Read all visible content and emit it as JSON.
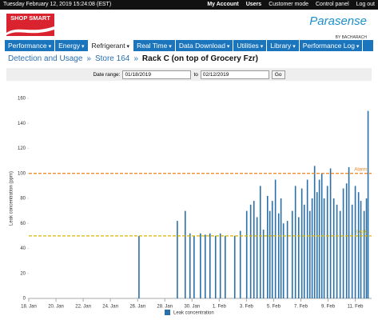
{
  "top_bar": {
    "datetime": "Tuesday February 12, 2019 15:24:08 (EST)",
    "links": [
      "My Account",
      "Users",
      "Customer mode",
      "Control panel",
      "Log out"
    ]
  },
  "header": {
    "logo": "SHOP SMART",
    "brand": "Parasense",
    "brand_sub": "BY BACHARACH"
  },
  "nav": {
    "items": [
      "Performance",
      "Energy",
      "Refrigerant",
      "Real Time",
      "Data Download",
      "Utilities",
      "Library",
      "Performance Log"
    ],
    "active_index": 2
  },
  "breadcrumb": {
    "items": [
      "Detection and Usage",
      "Store 164",
      "Rack C (on top of Grocery Fzr)"
    ],
    "separator": "»"
  },
  "date_range": {
    "label": "Date range:",
    "from": "01/18/2019",
    "to_label": "to",
    "to": "02/12/2019",
    "button": "Go"
  },
  "chart_data": {
    "type": "bar",
    "y_label": "Leak concentration (ppm)",
    "xlim": [
      0,
      25.2
    ],
    "xticks": [
      {
        "value": 0,
        "label": "18. Jan"
      },
      {
        "value": 2,
        "label": "20. Jan"
      },
      {
        "value": 4,
        "label": "22. Jan"
      },
      {
        "value": 6,
        "label": "24. Jan"
      },
      {
        "value": 8,
        "label": "26. Jan"
      },
      {
        "value": 10,
        "label": "28. Jan"
      },
      {
        "value": 12,
        "label": "30. Jan"
      },
      {
        "value": 14,
        "label": "1. Feb"
      },
      {
        "value": 16,
        "label": "3. Feb"
      },
      {
        "value": 18,
        "label": "5. Feb"
      },
      {
        "value": 20,
        "label": "7. Feb"
      },
      {
        "value": 22,
        "label": "9. Feb"
      },
      {
        "value": 24,
        "label": "11. Feb"
      }
    ],
    "ylim": [
      0,
      160
    ],
    "yticks": [
      0,
      20,
      40,
      60,
      80,
      100,
      120,
      140,
      160
    ],
    "grid": false,
    "thresholds": [
      {
        "label": "Alarm",
        "value": 100,
        "color": "#e8821e"
      },
      {
        "label": "Leak",
        "value": 50,
        "color": "#d8b400"
      }
    ],
    "series": [
      {
        "name": "Leak concentration",
        "color": "#2b6fa8",
        "x": [
          8.1,
          10.92,
          11.5,
          11.85,
          12.15,
          12.62,
          12.97,
          13.32,
          13.73,
          14.08,
          14.44,
          15.14,
          15.55,
          16.02,
          16.31,
          16.55,
          16.78,
          17.02,
          17.25,
          17.55,
          17.72,
          17.9,
          18.13,
          18.37,
          18.54,
          18.72,
          19.01,
          19.37,
          19.6,
          19.84,
          20.07,
          20.25,
          20.48,
          20.66,
          20.83,
          21.01,
          21.19,
          21.36,
          21.54,
          21.71,
          21.95,
          22.18,
          22.42,
          22.65,
          22.89,
          23.12,
          23.36,
          23.53,
          23.77,
          24.0,
          24.24,
          24.41,
          24.65,
          24.82,
          24.94
        ],
        "values": [
          50,
          62,
          70,
          52,
          50,
          52,
          51,
          52,
          50,
          52,
          50,
          50,
          54,
          70,
          75,
          78,
          65,
          90,
          55,
          82,
          70,
          78,
          95,
          68,
          80,
          60,
          62,
          70,
          90,
          65,
          88,
          75,
          95,
          70,
          80,
          106,
          85,
          95,
          100,
          80,
          90,
          104,
          80,
          75,
          70,
          88,
          92,
          105,
          75,
          90,
          85,
          78,
          70,
          80,
          150
        ]
      }
    ]
  }
}
